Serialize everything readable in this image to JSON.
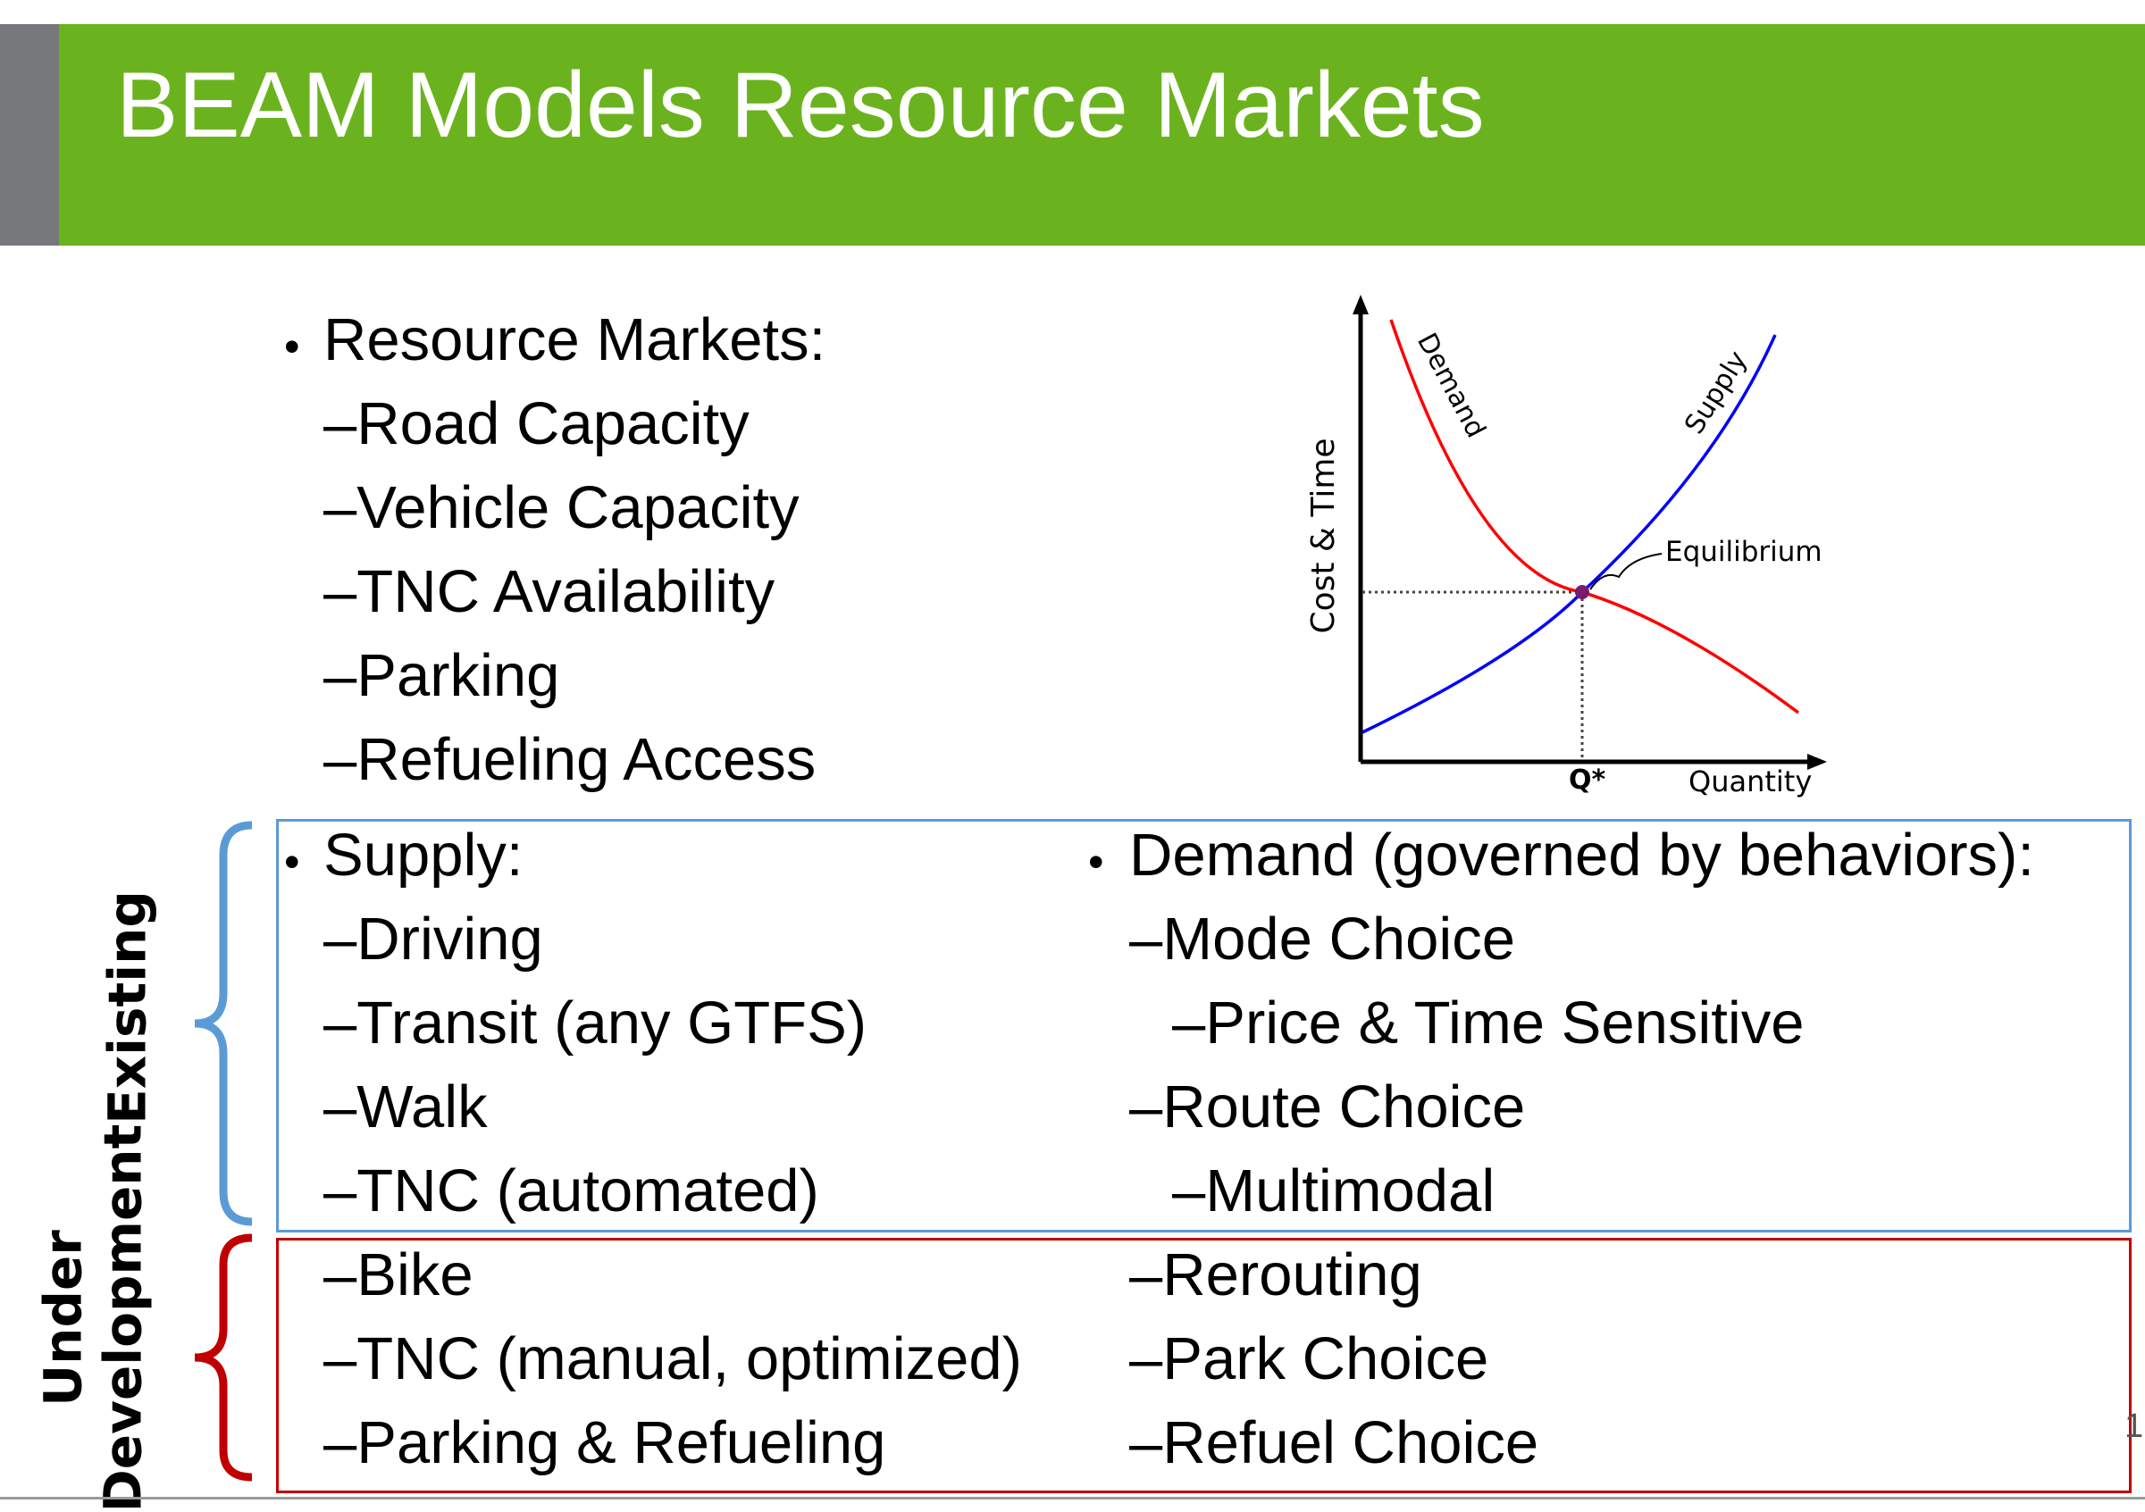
{
  "slide": {
    "title": "BEAM Models Resource Markets",
    "page_number": "1"
  },
  "resource_markets": {
    "heading": "Resource Markets:",
    "items": [
      "Road Capacity",
      "Vehicle Capacity",
      "TNC Availability",
      "Parking",
      "Refueling Access"
    ]
  },
  "supply": {
    "heading": "Supply:",
    "existing": [
      "Driving",
      "Transit (any GTFS)",
      "Walk",
      "TNC (automated)"
    ],
    "under_development": [
      "Bike",
      "TNC (manual, optimized)",
      "Parking & Refueling"
    ]
  },
  "demand": {
    "heading": "Demand (governed by behaviors):",
    "existing": [
      "Mode Choice",
      "Price & Time Sensitive",
      "Route Choice",
      "Multimodal"
    ],
    "under_development": [
      "Rerouting",
      "Park Choice",
      "Refuel Choice"
    ]
  },
  "labels": {
    "existing": "Existing",
    "under_development_line1": "Under",
    "under_development_line2": "Development"
  },
  "graph": {
    "y_axis_label": "Cost & Time",
    "x_axis_label": "Quantity",
    "q_star": "Q*",
    "demand_label": "Demand",
    "supply_label": "Supply",
    "equilibrium_label": "Equilibrium",
    "demand_color": "#ff0000",
    "supply_color": "#0000ff",
    "equilibrium_color": "#7a1c6e"
  },
  "colors": {
    "banner": "#6bb31e",
    "banner_tab": "#77787b",
    "existing_bracket": "#5b9bd5",
    "under_development_bracket": "#c00000"
  }
}
